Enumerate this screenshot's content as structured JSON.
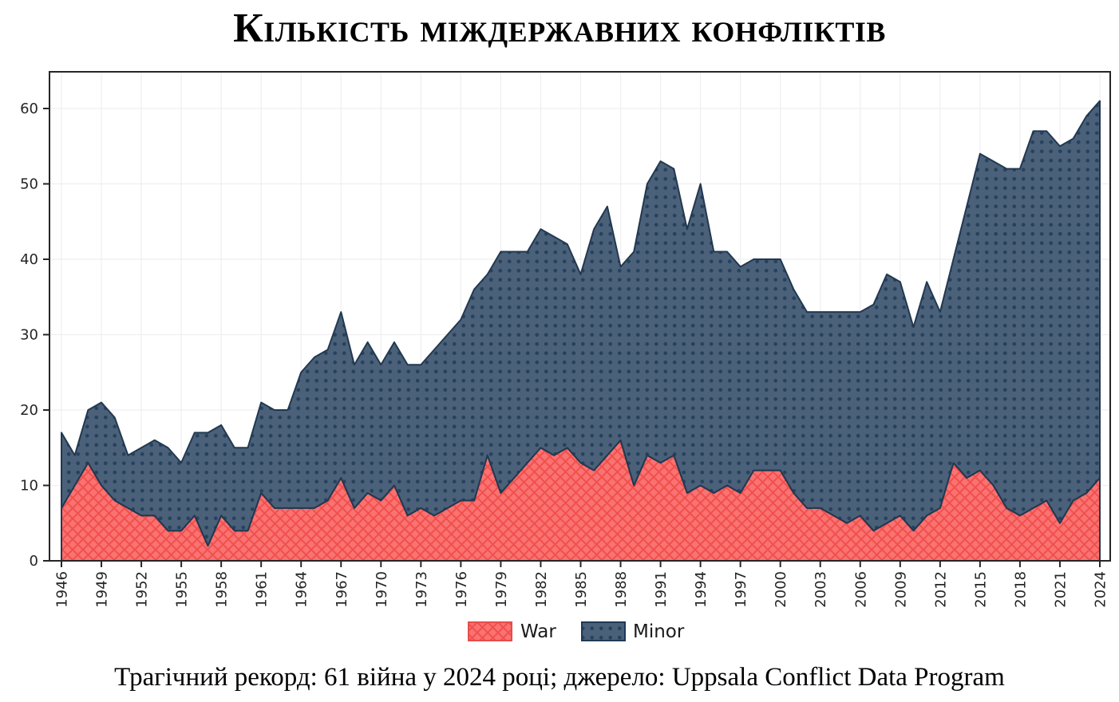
{
  "title": "Кількість міждержавних конфліктів",
  "caption": "Трагічний рекорд: 61 війна у 2024 році; джерело: Uppsala Conflict Data Program",
  "legend": {
    "war": "War",
    "minor": "Minor"
  },
  "colors": {
    "war_fill": "#fa7272",
    "war_hatch": "#f0504c",
    "war_border": "#e74c4c",
    "minor_fill": "#4a6179",
    "minor_dot": "#26425e",
    "minor_border": "#1e3954",
    "edge": "#223850",
    "axis": "#262626",
    "grid": "#f0eef0",
    "tick_label": "#262626"
  },
  "chart_data": {
    "type": "area",
    "stacked": true,
    "title": "Кількість міждержавних конфліктів",
    "xlabel": "",
    "ylabel": "",
    "grid": true,
    "legend_position": "bottom",
    "ylim": [
      0,
      65
    ],
    "yticks": [
      0,
      10,
      20,
      30,
      40,
      50,
      60
    ],
    "xticks": [
      1946,
      1949,
      1952,
      1955,
      1958,
      1961,
      1964,
      1967,
      1970,
      1973,
      1976,
      1979,
      1982,
      1985,
      1988,
      1991,
      1994,
      1997,
      2000,
      2003,
      2006,
      2009,
      2012,
      2015,
      2018,
      2021,
      2024
    ],
    "x": [
      1946,
      1947,
      1948,
      1949,
      1950,
      1951,
      1952,
      1953,
      1954,
      1955,
      1956,
      1957,
      1958,
      1959,
      1960,
      1961,
      1962,
      1963,
      1964,
      1965,
      1966,
      1967,
      1968,
      1969,
      1970,
      1971,
      1972,
      1973,
      1974,
      1975,
      1976,
      1977,
      1978,
      1979,
      1980,
      1981,
      1982,
      1983,
      1984,
      1985,
      1986,
      1987,
      1988,
      1989,
      1990,
      1991,
      1992,
      1993,
      1994,
      1995,
      1996,
      1997,
      1998,
      1999,
      2000,
      2001,
      2002,
      2003,
      2004,
      2005,
      2006,
      2007,
      2008,
      2009,
      2010,
      2011,
      2012,
      2013,
      2014,
      2015,
      2016,
      2017,
      2018,
      2019,
      2020,
      2021,
      2022,
      2023,
      2024
    ],
    "series": [
      {
        "name": "War",
        "values": [
          7,
          10,
          13,
          10,
          8,
          7,
          6,
          6,
          4,
          4,
          6,
          2,
          6,
          4,
          4,
          9,
          7,
          7,
          7,
          7,
          8,
          11,
          7,
          9,
          8,
          10,
          6,
          7,
          6,
          7,
          8,
          8,
          14,
          9,
          11,
          13,
          15,
          14,
          15,
          13,
          12,
          14,
          16,
          10,
          14,
          13,
          14,
          9,
          10,
          9,
          10,
          9,
          12,
          12,
          12,
          9,
          7,
          7,
          6,
          5,
          6,
          4,
          5,
          6,
          4,
          6,
          7,
          13,
          11,
          12,
          10,
          7,
          6,
          7,
          8,
          5,
          8,
          9,
          11
        ]
      },
      {
        "name": "Minor",
        "values": [
          10,
          4,
          7,
          11,
          11,
          7,
          9,
          10,
          11,
          9,
          11,
          15,
          12,
          11,
          11,
          12,
          13,
          13,
          18,
          20,
          20,
          22,
          19,
          20,
          18,
          19,
          20,
          19,
          22,
          23,
          24,
          28,
          24,
          32,
          30,
          28,
          29,
          29,
          27,
          25,
          32,
          33,
          23,
          31,
          36,
          40,
          38,
          35,
          40,
          32,
          31,
          30,
          28,
          28,
          28,
          27,
          26,
          26,
          27,
          28,
          27,
          30,
          33,
          31,
          27,
          31,
          26,
          27,
          36,
          42,
          43,
          45,
          46,
          50,
          49,
          50,
          48,
          50,
          50
        ]
      }
    ]
  }
}
